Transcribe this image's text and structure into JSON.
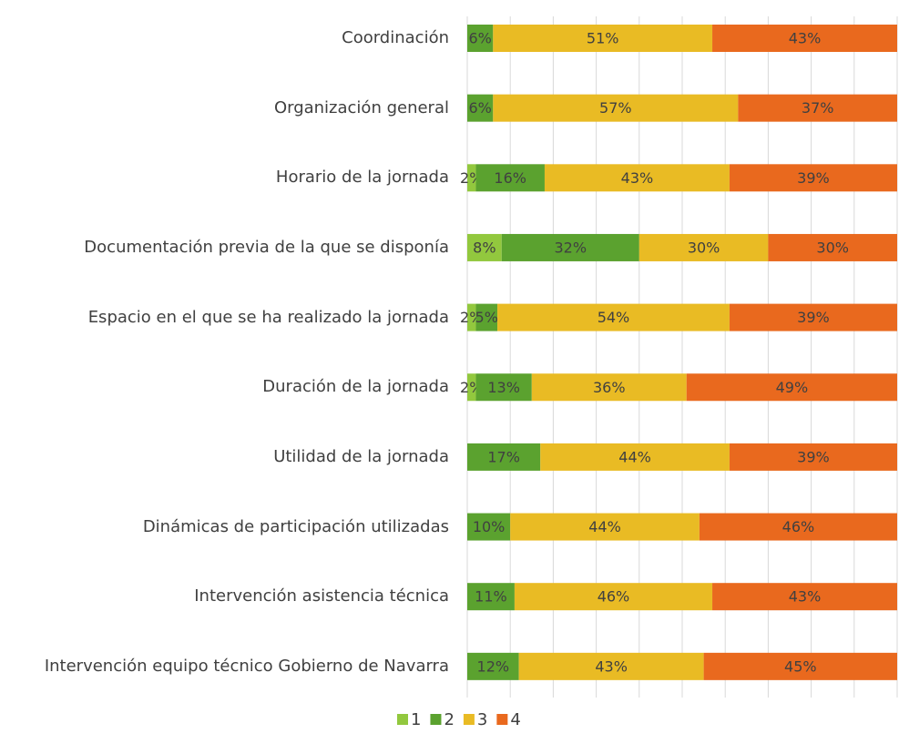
{
  "chart_data": {
    "type": "stacked_bar_horizontal",
    "categories": [
      "Coordinación",
      "Organización general",
      "Horario de la jornada",
      "Documentación previa de la que se disponía",
      "Espacio en el que se ha realizado la jornada",
      "Duración de la jornada",
      "Utilidad de la jornada",
      "Dinámicas de participación utilizadas",
      "Intervención asistencia técnica",
      "Intervención equipo técnico Gobierno de Navarra"
    ],
    "series": [
      {
        "name": "1",
        "color": "#92c83e",
        "values": [
          null,
          null,
          2,
          8,
          2,
          2,
          null,
          null,
          null,
          null
        ],
        "value_labels": [
          null,
          null,
          "2%",
          "8%",
          "2%",
          "2%",
          null,
          null,
          null,
          null
        ]
      },
      {
        "name": "2",
        "color": "#5ba22f",
        "values": [
          6,
          6,
          16,
          32,
          5,
          13,
          17,
          10,
          11,
          12
        ],
        "value_labels": [
          "6%",
          "6%",
          "16%",
          "32%",
          "5%",
          "13%",
          "17%",
          "10%",
          "11%",
          "12%"
        ]
      },
      {
        "name": "3",
        "color": "#e9bb24",
        "values": [
          51,
          57,
          43,
          30,
          54,
          36,
          44,
          44,
          46,
          43
        ],
        "value_labels": [
          "51%",
          "57%",
          "43%",
          "30%",
          "54%",
          "36%",
          "44%",
          "44%",
          "46%",
          "43%"
        ]
      },
      {
        "name": "4",
        "color": "#e9691e",
        "values": [
          43,
          37,
          39,
          30,
          39,
          49,
          39,
          46,
          43,
          45
        ],
        "value_labels": [
          "43%",
          "37%",
          "39%",
          "30%",
          "39%",
          "49%",
          "39%",
          "46%",
          "43%",
          "45%"
        ]
      }
    ],
    "xlim": [
      0,
      100
    ],
    "xticks": [
      0,
      10,
      20,
      30,
      40,
      50,
      60,
      70,
      80,
      90,
      100
    ],
    "grid": true,
    "legend": "bottom"
  }
}
